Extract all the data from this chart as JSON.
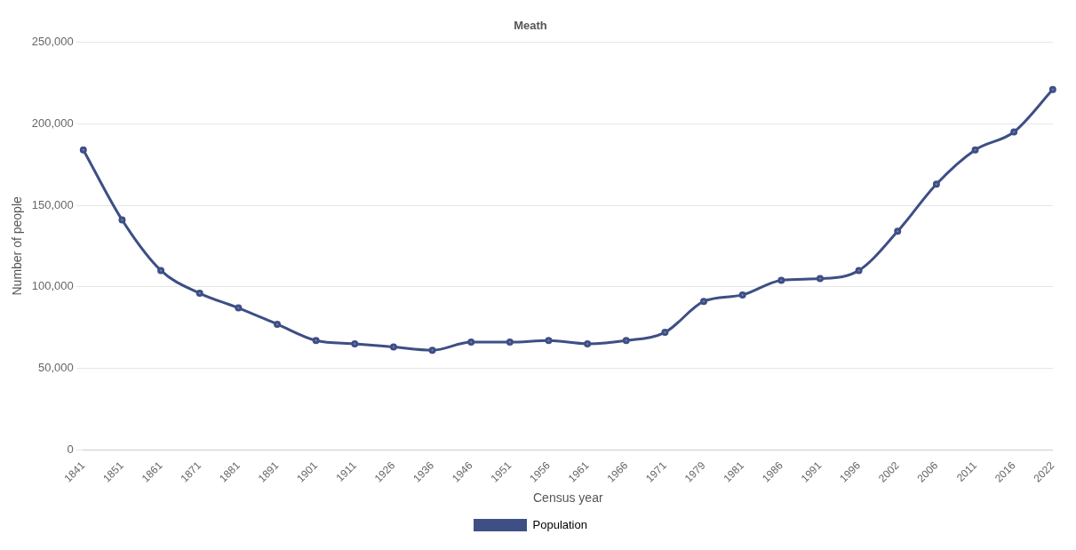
{
  "chart_data": {
    "type": "line",
    "title": "Meath",
    "xlabel": "Census year",
    "ylabel": "Number of people",
    "categories": [
      "1841",
      "1851",
      "1861",
      "1871",
      "1881",
      "1891",
      "1901",
      "1911",
      "1926",
      "1936",
      "1946",
      "1951",
      "1956",
      "1961",
      "1966",
      "1971",
      "1979",
      "1981",
      "1986",
      "1991",
      "1996",
      "2002",
      "2006",
      "2011",
      "2016",
      "2022"
    ],
    "series": [
      {
        "name": "Population",
        "color": "#3d4f85",
        "values": [
          184000,
          141000,
          110000,
          96000,
          87000,
          77000,
          67000,
          65000,
          63000,
          61000,
          66000,
          66000,
          67000,
          65000,
          67000,
          72000,
          91000,
          95000,
          104000,
          105000,
          110000,
          134000,
          163000,
          184000,
          195000,
          221000
        ]
      }
    ],
    "ylim": [
      0,
      250000
    ],
    "yticks": [
      {
        "value": 0,
        "label": "0"
      },
      {
        "value": 50000,
        "label": "50,000"
      },
      {
        "value": 100000,
        "label": "100,000"
      },
      {
        "value": 150000,
        "label": "150,000"
      },
      {
        "value": 200000,
        "label": "200,000"
      },
      {
        "value": 250000,
        "label": "250,000"
      }
    ],
    "grid": "y",
    "legend": "bottom",
    "marker": "circle",
    "line_style": "solid"
  }
}
